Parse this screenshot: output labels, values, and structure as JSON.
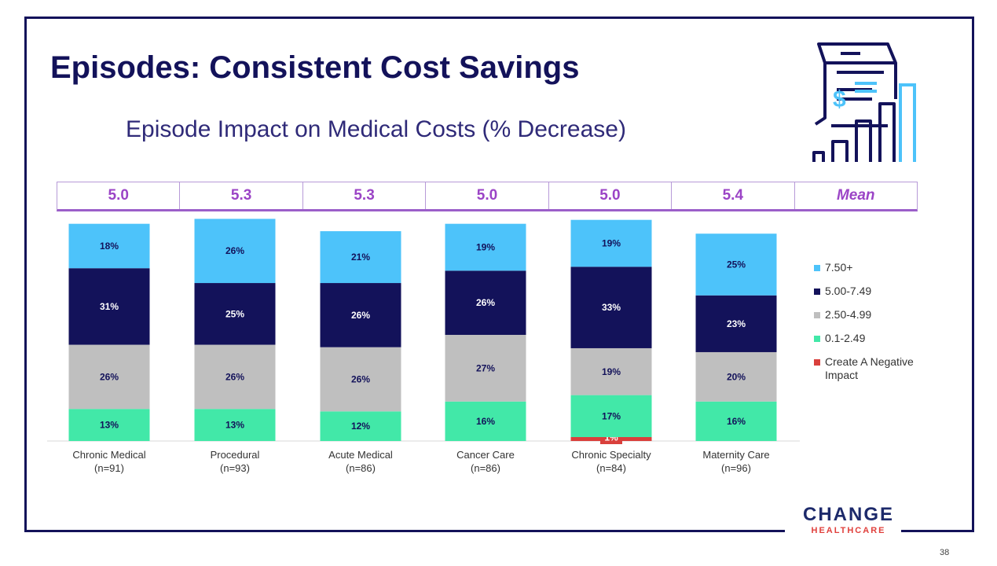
{
  "title": "Episodes: Consistent Cost Savings",
  "subtitle": "Episode Impact on Medical Costs (% Decrease)",
  "mean_row": [
    "5.0",
    "5.3",
    "5.3",
    "5.0",
    "5.0",
    "5.4",
    "Mean"
  ],
  "logo": {
    "main": "CHANGE",
    "sub": "HEALTHCARE"
  },
  "page_number": "38",
  "colors": {
    "7.50+": "#4dc3fa",
    "5.00-7.49": "#13125a",
    "2.50-4.99": "#bfbfbf",
    "0.1-2.49": "#42e8a8",
    "Create A Negative Impact": "#d9403c"
  },
  "chart_data": {
    "type": "bar",
    "stacked": true,
    "categories": [
      [
        "Chronic Medical",
        "(n=91)"
      ],
      [
        "Procedural",
        "(n=93)"
      ],
      [
        "Acute Medical",
        "(n=86)"
      ],
      [
        "Cancer Care",
        "(n=86)"
      ],
      [
        "Chronic Specialty",
        "(n=84)"
      ],
      [
        "Maternity Care",
        "(n=96)"
      ]
    ],
    "series": [
      {
        "name": "Create A Negative Impact",
        "values": [
          0,
          0,
          0,
          0,
          1,
          0
        ]
      },
      {
        "name": "0.1-2.49",
        "values": [
          13,
          13,
          12,
          16,
          17,
          16
        ]
      },
      {
        "name": "2.50-4.99",
        "values": [
          26,
          26,
          26,
          27,
          19,
          20
        ]
      },
      {
        "name": "5.00-7.49",
        "values": [
          31,
          25,
          26,
          26,
          33,
          23
        ]
      },
      {
        "name": "7.50+",
        "values": [
          18,
          26,
          21,
          19,
          19,
          25
        ]
      }
    ],
    "legend_order": [
      "7.50+",
      "5.00-7.49",
      "2.50-4.99",
      "0.1-2.49",
      "Create A Negative Impact"
    ],
    "legend_position": "right",
    "value_format": "percent"
  }
}
